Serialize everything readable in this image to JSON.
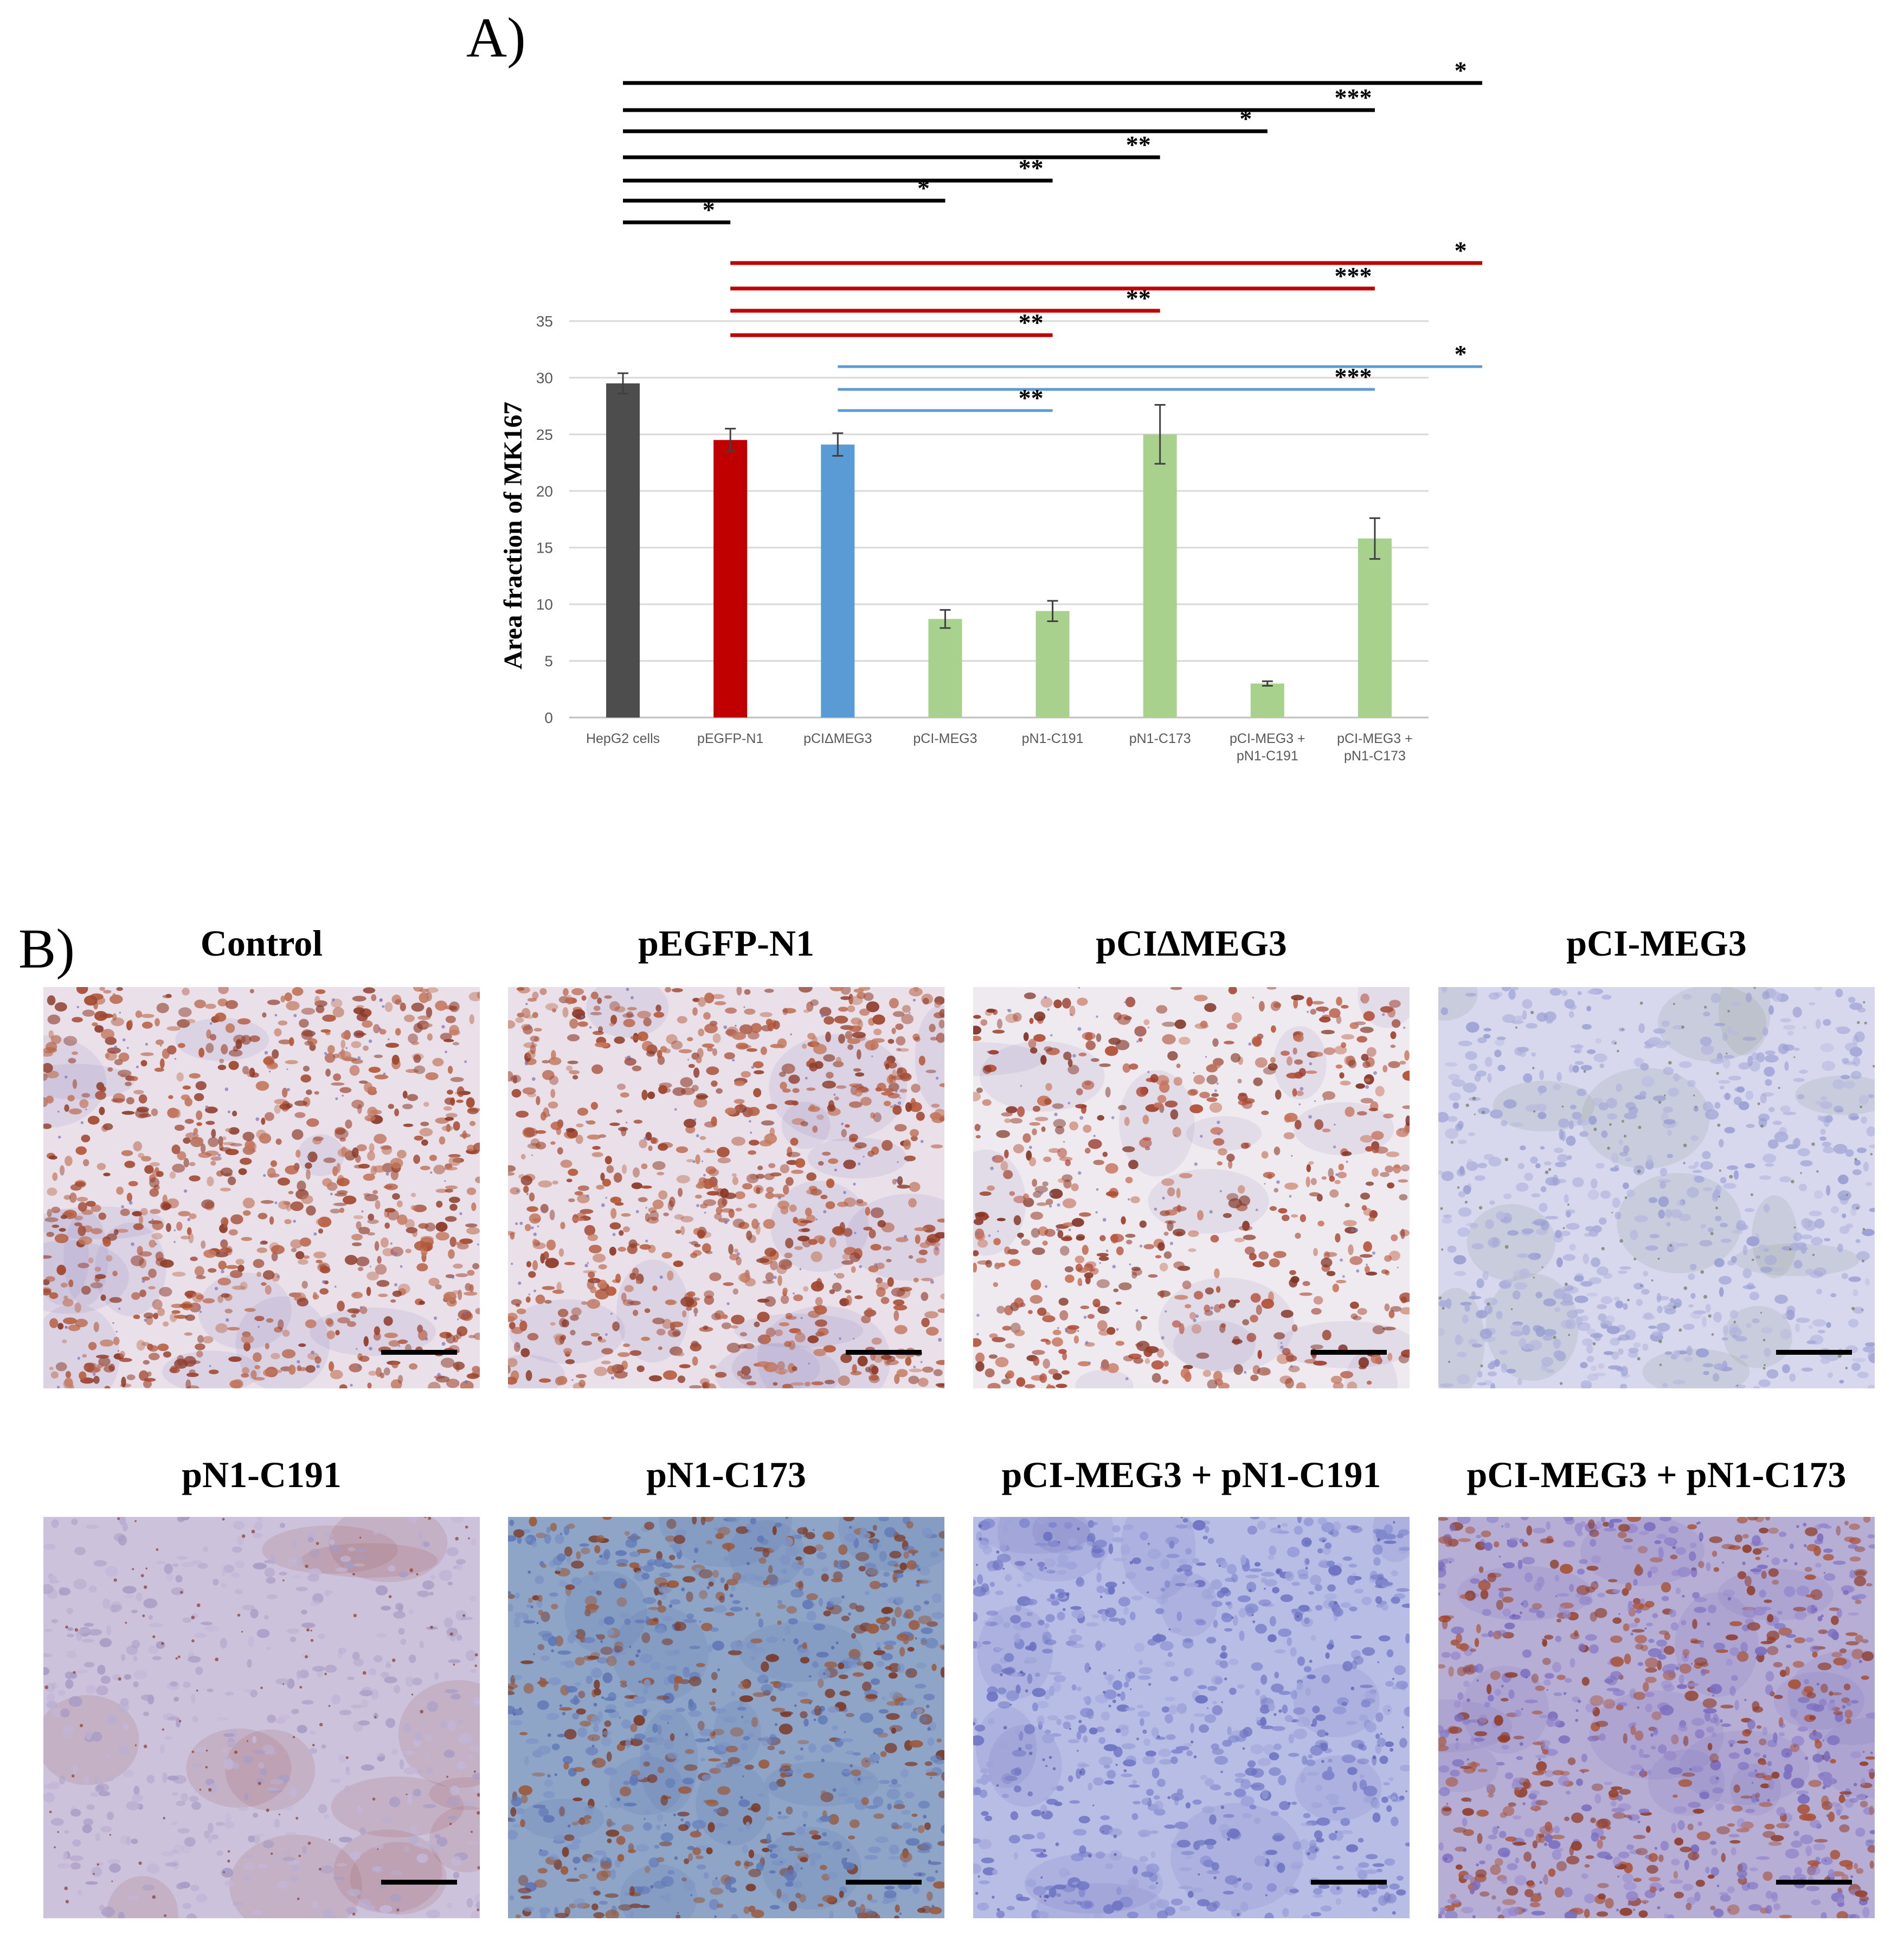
{
  "panel_a_label": "A)",
  "panel_b_label": "B)",
  "chart_data": {
    "type": "bar",
    "ylabel": "Area fraction of MK167",
    "ylim": [
      0,
      35
    ],
    "yticks": [
      "0",
      "5",
      "10",
      "15",
      "20",
      "25",
      "30",
      "35"
    ],
    "grid": true,
    "categories": [
      [
        "HepG2 cells"
      ],
      [
        "pEGFP-N1"
      ],
      [
        "pCIΔMEG3"
      ],
      [
        "pCI-MEG3"
      ],
      [
        "pN1-C191"
      ],
      [
        "pN1-C173"
      ],
      [
        "pCI-MEG3 +",
        "pN1-C191"
      ],
      [
        "pCI-MEG3 +",
        "pN1-C173"
      ]
    ],
    "values": [
      29.5,
      24.5,
      24.1,
      8.7,
      9.4,
      25.0,
      3.0,
      15.8
    ],
    "errors": [
      0.9,
      1.0,
      1.0,
      0.8,
      0.9,
      2.6,
      0.2,
      1.8
    ],
    "colors": [
      "#4d4d4d",
      "#c00000",
      "#5b9bd5",
      "#a9d18e",
      "#a9d18e",
      "#a9d18e",
      "#a9d18e",
      "#a9d18e"
    ],
    "significance": [
      {
        "from": 0,
        "to": 8,
        "stars": "*",
        "color": "#000000",
        "outside": true
      },
      {
        "from": 0,
        "to": 7,
        "stars": "***",
        "color": "#000000",
        "outside": true
      },
      {
        "from": 0,
        "to": 6,
        "stars": "*",
        "color": "#000000",
        "outside": true
      },
      {
        "from": 0,
        "to": 5,
        "stars": "**",
        "color": "#000000",
        "outside": true
      },
      {
        "from": 0,
        "to": 4,
        "stars": "**",
        "color": "#000000",
        "outside": true
      },
      {
        "from": 0,
        "to": 3,
        "stars": "*",
        "color": "#000000",
        "outside": true
      },
      {
        "from": 0,
        "to": 1,
        "stars": "*",
        "color": "#000000",
        "outside": true
      },
      {
        "from": 1,
        "to": 8,
        "stars": "*",
        "color": "#c00000",
        "outside": true
      },
      {
        "from": 1,
        "to": 7,
        "stars": "***",
        "color": "#c00000",
        "outside": true
      },
      {
        "from": 1,
        "to": 5,
        "stars": "**",
        "color": "#c00000",
        "outside": true
      },
      {
        "from": 1,
        "to": 4,
        "stars": "**",
        "color": "#c00000",
        "outside": true
      },
      {
        "from": 2,
        "to": 8,
        "stars": "*",
        "color": "#5b9bd5",
        "outside": false
      },
      {
        "from": 2,
        "to": 7,
        "stars": "***",
        "color": "#5b9bd5",
        "outside": false
      },
      {
        "from": 2,
        "to": 4,
        "stars": "**",
        "color": "#5b9bd5",
        "outside": false
      }
    ]
  },
  "micrographs": [
    {
      "title": "Control",
      "stain": "brown-dense"
    },
    {
      "title": "pEGFP-N1",
      "stain": "brown-dense"
    },
    {
      "title": "pCIΔMEG3",
      "stain": "brown-clustered"
    },
    {
      "title": "pCI-MEG3",
      "stain": "blue-pale"
    },
    {
      "title": "pN1-C191",
      "stain": "lilac-sparse"
    },
    {
      "title": "pN1-C173",
      "stain": "blue-brown-mixed"
    },
    {
      "title": "pCI-MEG3 + pN1-C191",
      "stain": "blue-dense"
    },
    {
      "title": "pCI-MEG3 + pN1-C173",
      "stain": "brown-blue-mixed"
    }
  ]
}
